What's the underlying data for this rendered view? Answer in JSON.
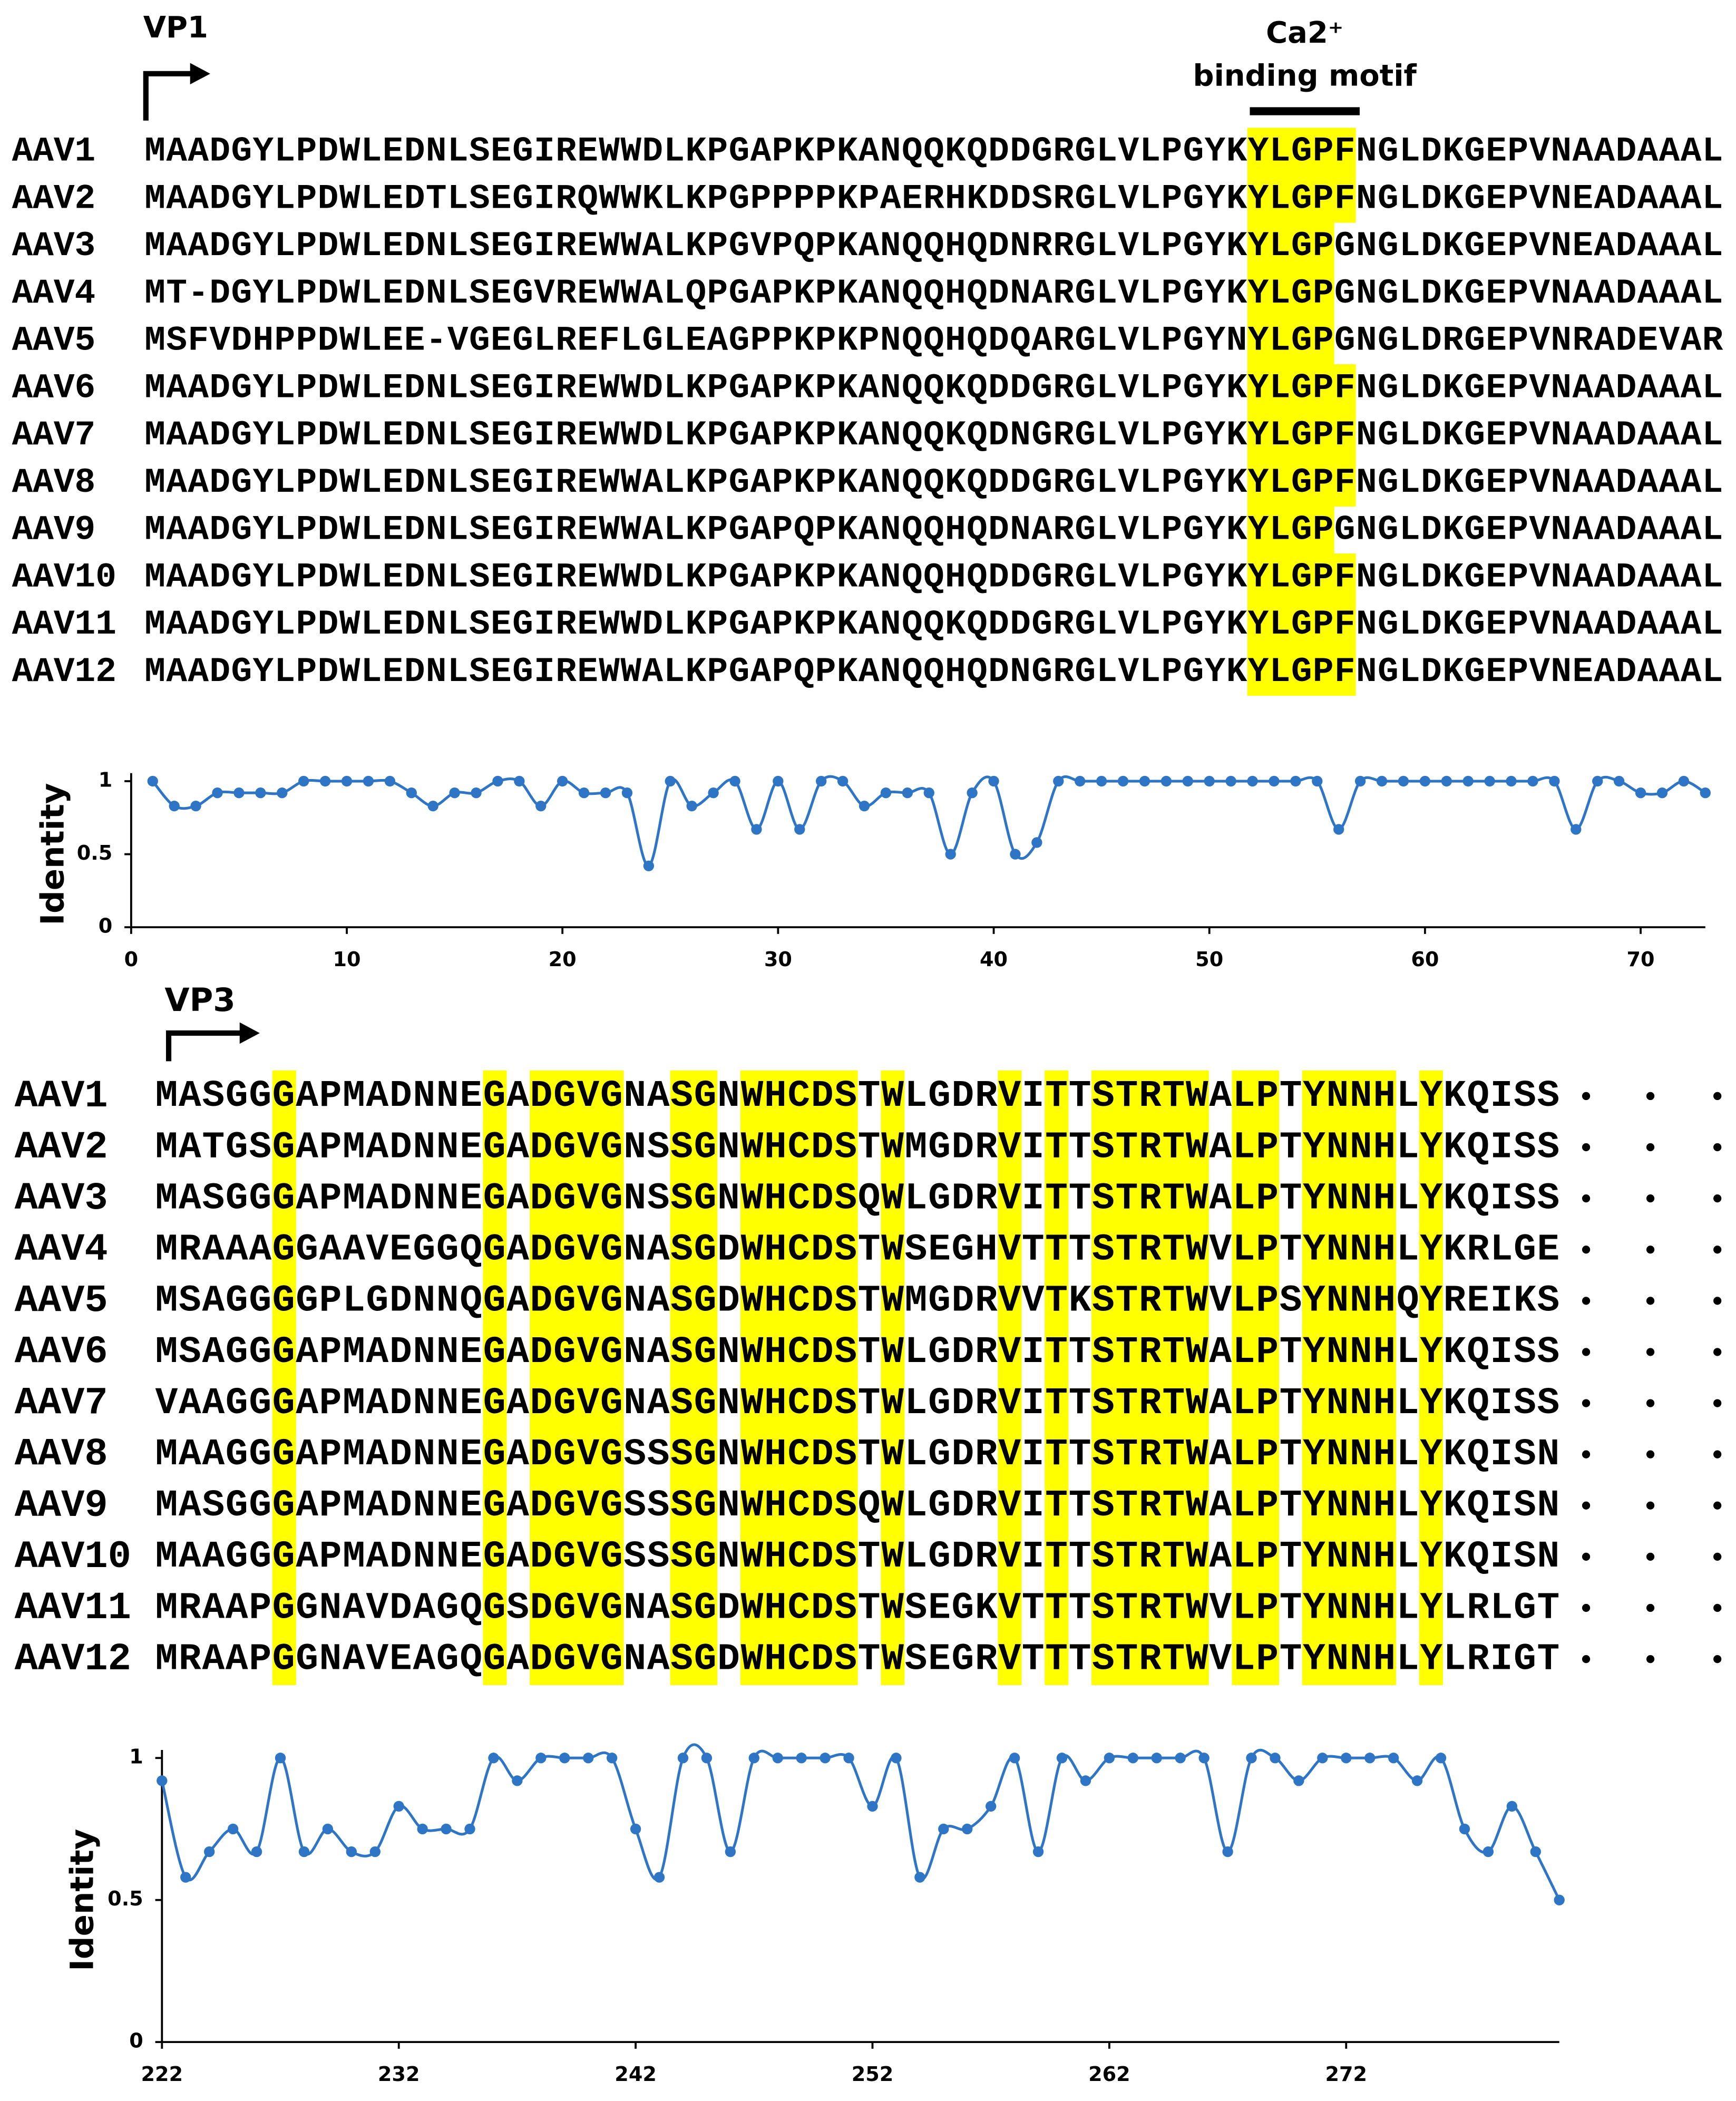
{
  "vp1_alignment": {
    "title": "VP1",
    "motif": {
      "title": "Ca2⁺",
      "subtitle": "binding motif"
    },
    "rows": [
      {
        "name": "AAV1",
        "sequence": "MAADGYLPDWLEDNLSEGIREWWDLKPGAPKPKANQQKQDDGRGLVLPGYKYLGPFNGLDKGEPVNAADAAAL"
      },
      {
        "name": "AAV2",
        "sequence": "MAADGYLPDWLEDTLSEGIRQWWKLKPGPPPPKPAERHKDDSRGLVLPGYKYLGPFNGLDKGEPVNEADAAAL"
      },
      {
        "name": "AAV3",
        "sequence": "MAADGYLPDWLEDNLSEGIREWWALKPGVPQPKANQQHQDNRRGLVLPGYKYLGPGNGLDKGEPVNEADAAAL"
      },
      {
        "name": "AAV4",
        "sequence": "MT-DGYLPDWLEDNLSEGVREWWALQPGAPKPKANQQHQDNARGLVLPGYKYLGPGNGLDKGEPVNAADAAAL"
      },
      {
        "name": "AAV5",
        "sequence": "MSFVDHPPDWLEE-VGEGLREFLGLEAGPPKPKPNQQHQDQARGLVLPGYNYLGPGNGLDRGEPVNRADEVAR"
      },
      {
        "name": "AAV6",
        "sequence": "MAADGYLPDWLEDNLSEGIREWWDLKPGAPKPKANQQKQDDGRGLVLPGYKYLGPFNGLDKGEPVNAADAAAL"
      },
      {
        "name": "AAV7",
        "sequence": "MAADGYLPDWLEDNLSEGIREWWDLKPGAPKPKANQQKQDNGRGLVLPGYKYLGPFNGLDKGEPVNAADAAAL"
      },
      {
        "name": "AAV8",
        "sequence": "MAADGYLPDWLEDNLSEGIREWWALKPGAPKPKANQQKQDDGRGLVLPGYKYLGPFNGLDKGEPVNAADAAAL"
      },
      {
        "name": "AAV9",
        "sequence": "MAADGYLPDWLEDNLSEGIREWWALKPGAPQPKANQQHQDNARGLVLPGYKYLGPGNGLDKGEPVNAADAAAL"
      },
      {
        "name": "AAV10",
        "sequence": "MAADGYLPDWLEDNLSEGIREWWDLKPGAPKPKANQQHQDDGRGLVLPGYKYLGPFNGLDKGEPVNAADAAAL"
      },
      {
        "name": "AAV11",
        "sequence": "MAADGYLPDWLEDNLSEGIREWWDLKPGAPKPKANQQKQDDGRGLVLPGYKYLGPFNGLDKGEPVNAADAAAL"
      },
      {
        "name": "AAV12",
        "sequence": "MAADGYLPDWLEDNLSEGIREWWALKPGAPQPKANQQHQDNGRGLVLPGYKYLGPFNGLDKGEPVNEADAAAL"
      }
    ]
  },
  "vp3_alignment": {
    "title": "VP3",
    "rows": [
      {
        "name": "AAV1",
        "sequence": "MASGGGAPMADNNEGADGVGNASGNWHCDSTWLGDRVITTSTRTWALPTYNNHLYKQISS"
      },
      {
        "name": "AAV2",
        "sequence": "MATGSGAPMADNNEGADGVGNSSGNWHCDSTWMGDRVITTSTRTWALPTYNNHLYKQISS"
      },
      {
        "name": "AAV3",
        "sequence": "MASGGGAPMADNNEGADGVGNSSGNWHCDSQWLGDRVITTSTRTWALPTYNNHLYKQISS"
      },
      {
        "name": "AAV4",
        "sequence": "MRAAAGGAAVEGGQGADGVGNASGDWHCDSTWSEGHVTTTSTRTWVLPTYNNHLYKRLGE"
      },
      {
        "name": "AAV5",
        "sequence": "MSAGGGGPLGDNNQGADGVGNASGDWHCDSTWMGDRVVTKSTRTWVLPSYNNHQYREIKS"
      },
      {
        "name": "AAV6",
        "sequence": "MSAGGGAPMADNNEGADGVGNASGNWHCDSTWLGDRVITTSTRTWALPTYNNHLYKQISS"
      },
      {
        "name": "AAV7",
        "sequence": "VAAGGGAPMADNNEGADGVGNASGNWHCDSTWLGDRVITTSTRTWALPTYNNHLYKQISS"
      },
      {
        "name": "AAV8",
        "sequence": "MAAGGGAPMADNNEGADGVGSSSGNWHCDSTWLGDRVITTSTRTWALPTYNNHLYKQISN"
      },
      {
        "name": "AAV9",
        "sequence": "MASGGGAPMADNNEGADGVGSSSGNWHCDSQWLGDRVITTSTRTWALPTYNNHLYKQISN"
      },
      {
        "name": "AAV10",
        "sequence": "MAAGGGAPMADNNEGADGVGSSSGNWHCDSTWLGDRVITTSTRTWALPTYNNHLYKQISN"
      },
      {
        "name": "AAV11",
        "sequence": "MRAAPGGNAVDAGQGSDGVGNASGDWHCDSTWSEGKVTTTSTRTWVLPTYNNHLYLRLGT"
      },
      {
        "name": "AAV12",
        "sequence": "MRAAPGGNAVEAGQGADGVGNASGDWHCDSTWSEGRVTTTSTRTWVLPTYNNHLYLRIGT"
      }
    ]
  },
  "chart_data": [
    {
      "type": "line",
      "y_label": "Identity",
      "color": "#2e75c6",
      "x": [
        1,
        2,
        3,
        4,
        5,
        6,
        7,
        8,
        9,
        10,
        11,
        12,
        13,
        14,
        15,
        16,
        17,
        18,
        19,
        20,
        21,
        22,
        23,
        24,
        25,
        26,
        27,
        28,
        29,
        30,
        31,
        32,
        33,
        34,
        35,
        36,
        37,
        38,
        39,
        40,
        41,
        42,
        43,
        44,
        45,
        46,
        47,
        48,
        49,
        50,
        51,
        52,
        53,
        54,
        55,
        56,
        57,
        58,
        59,
        60,
        61,
        62,
        63,
        64,
        65,
        66,
        67,
        68,
        69,
        70,
        71,
        72,
        73
      ],
      "values": [
        1,
        0.83,
        0.83,
        0.92,
        0.92,
        0.92,
        0.92,
        1,
        1,
        1,
        1,
        1,
        0.92,
        0.83,
        0.92,
        0.92,
        1,
        1,
        0.83,
        1,
        0.92,
        0.92,
        0.92,
        0.42,
        1,
        0.83,
        0.92,
        1,
        0.67,
        1,
        0.67,
        1,
        1,
        0.83,
        0.92,
        0.92,
        0.92,
        0.5,
        0.92,
        1,
        0.5,
        0.58,
        1,
        1,
        1,
        1,
        1,
        1,
        1,
        1,
        1,
        1,
        1,
        1,
        1,
        0.67,
        1,
        1,
        1,
        1,
        1,
        1,
        1,
        1,
        1,
        1,
        0.67,
        1,
        1,
        0.92,
        0.92,
        1,
        0.92
      ],
      "xlim": [
        0,
        73
      ],
      "ylim": [
        0,
        1
      ],
      "xticks": [
        0,
        10,
        20,
        30,
        40,
        50,
        60,
        70
      ],
      "yticks": [
        0,
        0.5,
        1
      ]
    },
    {
      "type": "line",
      "y_label": "Identity",
      "color": "#2e75c6",
      "x": [
        222,
        223,
        224,
        225,
        226,
        227,
        228,
        229,
        230,
        231,
        232,
        233,
        234,
        235,
        236,
        237,
        238,
        239,
        240,
        241,
        242,
        243,
        244,
        245,
        246,
        247,
        248,
        249,
        250,
        251,
        252,
        253,
        254,
        255,
        256,
        257,
        258,
        259,
        260,
        261,
        262,
        263,
        264,
        265,
        266,
        267,
        268,
        269,
        270,
        271,
        272,
        273,
        274,
        275,
        276,
        277,
        278,
        279,
        280,
        281
      ],
      "values": [
        0.92,
        0.58,
        0.67,
        0.75,
        0.67,
        1,
        0.67,
        0.75,
        0.67,
        0.67,
        0.83,
        0.75,
        0.75,
        0.75,
        1,
        0.92,
        1,
        1,
        1,
        1,
        0.75,
        0.58,
        1,
        1,
        0.67,
        1,
        1,
        1,
        1,
        1,
        0.83,
        1,
        0.58,
        0.75,
        0.75,
        0.83,
        1,
        0.67,
        1,
        0.92,
        1,
        1,
        1,
        1,
        1,
        0.67,
        1,
        1,
        0.92,
        1,
        1,
        1,
        1,
        0.92,
        1,
        0.75,
        0.67,
        0.83,
        0.67,
        0.5
      ],
      "xlim": [
        222,
        281
      ],
      "ylim": [
        0,
        1
      ],
      "xticks": [
        222,
        232,
        242,
        252,
        262,
        272
      ],
      "yticks": [
        0,
        0.5,
        1
      ]
    }
  ]
}
